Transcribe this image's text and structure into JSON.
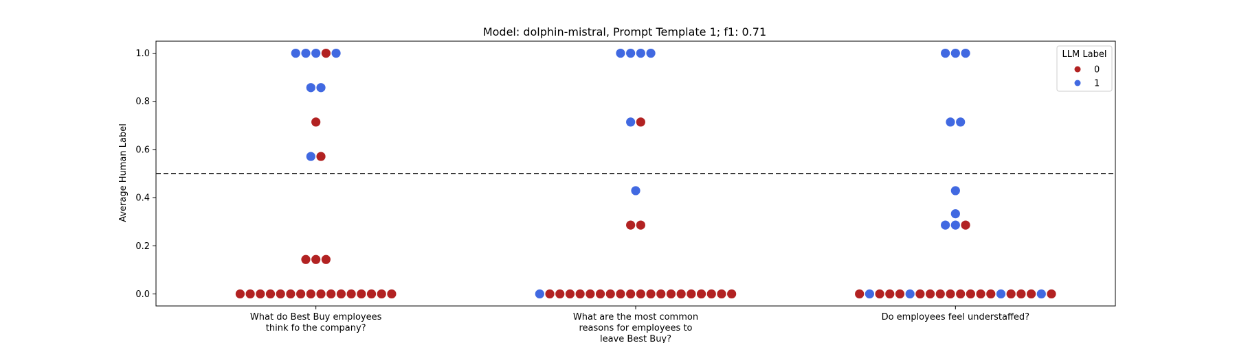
{
  "chart_data": {
    "type": "scatter",
    "subtype": "swarm",
    "title": "Model: dolphin-mistral, Prompt Template 1; f1: 0.71",
    "ylabel": "Average Human Label",
    "xlabel": "",
    "ylim": [
      -0.05,
      1.05
    ],
    "yticks": [
      "0.0",
      "0.2",
      "0.4",
      "0.6",
      "0.8",
      "1.0"
    ],
    "yticks_values": [
      0,
      0.2,
      0.4,
      0.6,
      0.8,
      1.0
    ],
    "threshold": 0.5,
    "grid": false,
    "legend": {
      "title": "LLM Label",
      "placement": "top-right",
      "entries": [
        {
          "label": "0",
          "color": "#b22222"
        },
        {
          "label": "1",
          "color": "#4169e1"
        }
      ]
    },
    "categories": [
      {
        "label_lines": [
          "What do Best Buy employees",
          "think fo the company?"
        ],
        "groups": [
          {
            "y": 1.0,
            "labels": [
              1,
              1,
              1,
              0,
              1
            ]
          },
          {
            "y": 0.857,
            "labels": [
              1,
              1
            ]
          },
          {
            "y": 0.714,
            "labels": [
              0
            ]
          },
          {
            "y": 0.571,
            "labels": [
              1,
              0
            ]
          },
          {
            "y": 0.143,
            "labels": [
              0,
              0,
              0
            ]
          },
          {
            "y": 0.0,
            "labels": [
              0,
              0,
              0,
              0,
              0,
              0,
              0,
              0,
              0,
              0,
              0,
              0,
              0,
              0,
              0,
              0
            ]
          }
        ]
      },
      {
        "label_lines": [
          "What are the most common",
          "reasons for employees to",
          "leave Best Buy?"
        ],
        "groups": [
          {
            "y": 1.0,
            "labels": [
              1,
              1,
              1,
              1
            ]
          },
          {
            "y": 0.714,
            "labels": [
              1,
              0
            ]
          },
          {
            "y": 0.429,
            "labels": [
              1
            ]
          },
          {
            "y": 0.286,
            "labels": [
              0,
              0
            ]
          },
          {
            "y": 0.0,
            "labels": [
              1,
              0,
              0,
              0,
              0,
              0,
              0,
              0,
              0,
              0,
              0,
              0,
              0,
              0,
              0,
              0,
              0,
              0,
              0,
              0
            ]
          }
        ]
      },
      {
        "label_lines": [
          "Do employees feel understaffed?"
        ],
        "groups": [
          {
            "y": 1.0,
            "labels": [
              1,
              1,
              1
            ]
          },
          {
            "y": 0.714,
            "labels": [
              1,
              1
            ]
          },
          {
            "y": 0.429,
            "labels": [
              1
            ]
          },
          {
            "y": 0.333,
            "labels": [
              1
            ]
          },
          {
            "y": 0.286,
            "labels": [
              1,
              1,
              0
            ]
          },
          {
            "y": 0.0,
            "labels": [
              0,
              1,
              0,
              0,
              0,
              1,
              0,
              0,
              0,
              0,
              0,
              0,
              0,
              0,
              1,
              0,
              0,
              0,
              1,
              0
            ]
          }
        ]
      }
    ]
  }
}
